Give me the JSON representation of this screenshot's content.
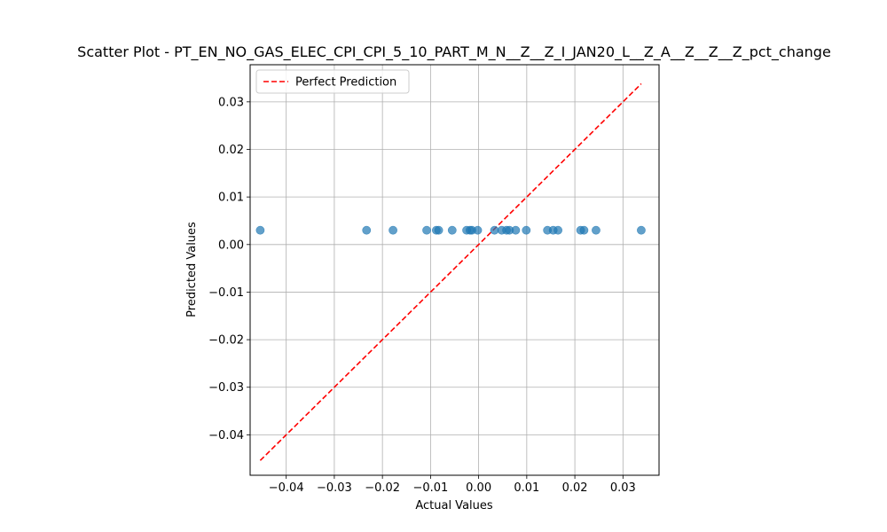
{
  "chart_data": {
    "type": "scatter",
    "title": "Scatter Plot - PT_EN_NO_GAS_ELEC_CPI_CPI_5_10_PART_M_N__Z__Z_I_JAN20_L__Z_A__Z__Z__Z_pct_change",
    "xlabel": "Actual Values",
    "ylabel": "Predicted Values",
    "xlim": [
      -0.0475,
      0.0375
    ],
    "ylim": [
      -0.0485,
      0.0378
    ],
    "xticks": [
      -0.04,
      -0.03,
      -0.02,
      -0.01,
      0.0,
      0.01,
      0.02,
      0.03
    ],
    "xtick_labels": [
      "−0.04",
      "−0.03",
      "−0.02",
      "−0.01",
      "0.00",
      "0.01",
      "0.02",
      "0.03"
    ],
    "yticks": [
      -0.04,
      -0.03,
      -0.02,
      -0.01,
      0.0,
      0.01,
      0.02,
      0.03
    ],
    "ytick_labels": [
      "−0.04",
      "−0.03",
      "−0.02",
      "−0.01",
      "0.00",
      "0.01",
      "0.02",
      "0.03"
    ],
    "grid": true,
    "legend_position": "top-left",
    "series": [
      {
        "kind": "points",
        "color": "#1f77b4",
        "x": [
          -0.0454,
          -0.0233,
          -0.0178,
          -0.0108,
          -0.0088,
          -0.0083,
          -0.0055,
          -0.0025,
          -0.0018,
          -0.0014,
          -0.0002,
          0.0033,
          0.0048,
          0.0058,
          0.0064,
          0.0077,
          0.0099,
          0.0143,
          0.0155,
          0.0165,
          0.0212,
          0.0219,
          0.0244,
          0.0338
        ],
        "y": [
          0.003,
          0.003,
          0.003,
          0.003,
          0.003,
          0.003,
          0.003,
          0.003,
          0.003,
          0.003,
          0.003,
          0.003,
          0.003,
          0.003,
          0.003,
          0.003,
          0.003,
          0.003,
          0.003,
          0.003,
          0.003,
          0.003,
          0.003,
          0.003
        ]
      },
      {
        "kind": "line",
        "name": "Perfect Prediction",
        "color": "#ff0000",
        "dashed": true,
        "x": [
          -0.0454,
          0.0338
        ],
        "y": [
          -0.0454,
          0.0338
        ]
      }
    ]
  }
}
